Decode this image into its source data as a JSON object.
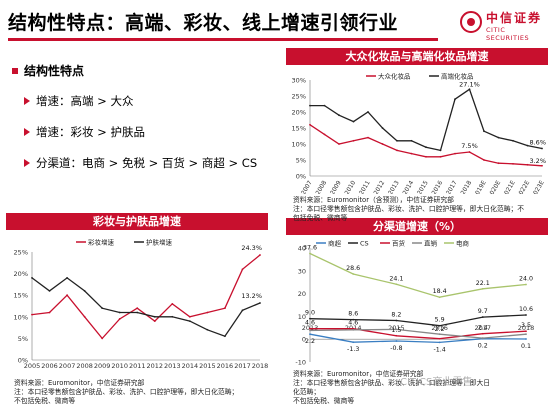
{
  "header": {
    "title": "结构性特点：高端、彩妆、线上增速引领行业",
    "logo_cn": "中信证券",
    "logo_en": "CITIC SECURITIES",
    "accent": "#c8102e"
  },
  "bullets": {
    "heading": "结构性特点",
    "items": [
      "增速：高端 > 大众",
      "增速：彩妆 > 护肤品",
      "分渠道：电商 > 免税 > 百货 > 商超 > CS"
    ]
  },
  "watermark": "CITICS商业零售",
  "panels": {
    "top_right": {
      "title": "大众化妆品与高端化妆品增速",
      "source": [
        "资料来源：Euromonitor（含预测），中信证券研究部",
        "注：本口径零售额包含护肤品、彩妆、洗护、口腔护理等，即大日化范畴；不",
        "包括免税、微商等"
      ]
    },
    "bottom_left": {
      "title": "彩妆与护肤品增速",
      "source": [
        "资料来源：Euromonitor，中信证券研究部",
        "注：本口径零售额包含护肤品、彩妆、洗护、口腔护理等，即大日化范畴；",
        "不包括免税、微商等"
      ]
    },
    "bottom_right": {
      "title": "分渠道增速（%）",
      "source": [
        "资料来源：Euromonitor，中信证券研究部",
        "注：本口径零售额包含护肤品、彩妆、洗护、口腔护理等，即大日化范畴；",
        "不包括免税、微商等"
      ]
    }
  },
  "chart_data": [
    {
      "type": "line",
      "x": [
        "2007",
        "2008",
        "2009",
        "2010",
        "2011",
        "2012",
        "2013",
        "2014",
        "2015",
        "2016",
        "2017",
        "2018",
        "2019E",
        "2020E",
        "2021E",
        "2022E",
        "2023E"
      ],
      "series": [
        {
          "name": "大众化妆品",
          "color": "#c8102e",
          "values": [
            16,
            13,
            10,
            11,
            12,
            10,
            8,
            7,
            6,
            6,
            7,
            7.5,
            5,
            4,
            3.8,
            3.5,
            3.2
          ]
        },
        {
          "name": "高端化妆品",
          "color": "#222222",
          "values": [
            22,
            22,
            19,
            17,
            20,
            15,
            11,
            11,
            9,
            8,
            24,
            27.1,
            14,
            12,
            11,
            9.5,
            8.6
          ]
        }
      ],
      "annotations": [
        "27.1%",
        "7.5%",
        "8.6%",
        "3.2%"
      ],
      "ylim": [
        0,
        30
      ],
      "yticks": [
        "0%",
        "5%",
        "10%",
        "15%",
        "20%",
        "25%",
        "30%"
      ],
      "legend": "top-center"
    },
    {
      "type": "line",
      "x": [
        "2005",
        "2006",
        "2007",
        "2008",
        "2009",
        "2010",
        "2011",
        "2012",
        "2013",
        "2014",
        "2015",
        "2016",
        "2017",
        "2018"
      ],
      "series": [
        {
          "name": "彩妆增速",
          "color": "#c8102e",
          "values": [
            10.5,
            11,
            15,
            10,
            5,
            9.5,
            12,
            9,
            13,
            10,
            11,
            12,
            21,
            24.3
          ]
        },
        {
          "name": "护肤增速",
          "color": "#222222",
          "values": [
            19,
            16,
            19,
            16,
            12,
            11,
            11,
            10,
            10,
            9,
            7,
            5.5,
            11.5,
            13.2
          ]
        }
      ],
      "annotations": [
        "24.3%",
        "13.2%"
      ],
      "ylim": [
        0,
        25
      ],
      "yticks": [
        "0%",
        "5%",
        "10%",
        "15%",
        "20%",
        "25%"
      ],
      "legend": "top-center"
    },
    {
      "type": "line",
      "x": [
        "2013",
        "2014",
        "2015",
        "2016",
        "2017",
        "2018"
      ],
      "series": [
        {
          "name": "商超",
          "color": "#3a7ec2",
          "values": [
            2.2,
            -1.3,
            -0.8,
            -1.4,
            0.2,
            0.1
          ]
        },
        {
          "name": "CS",
          "color": "#222222",
          "values": [
            9,
            8.6,
            8.2,
            5.9,
            9.7,
            10.6
          ]
        },
        {
          "name": "百货",
          "color": "#c8102e",
          "values": [
            4.6,
            4.6,
            1.5,
            0.2,
            2.4,
            3.5
          ]
        },
        {
          "name": "直销",
          "color": "#888888",
          "values": [
            3.8,
            4.1,
            4.3,
            2.2,
            0.5,
            2.2
          ]
        },
        {
          "name": "电商",
          "color": "#a9c46c",
          "values": [
            37.6,
            28.6,
            24.1,
            18.4,
            22.1,
            24
          ]
        }
      ],
      "labels": {
        "电商": [
          "37.6",
          "28.6",
          "24.1",
          "18.4",
          "22.1",
          "24.0"
        ],
        "CS": [
          "9.0",
          "8.6",
          "8.2",
          "5.9",
          "9.7",
          "10.6"
        ],
        "百货": [
          "4.6",
          "4.6",
          "1.5",
          "",
          "2.4",
          "3.5"
        ],
        "商超": [
          "2.2",
          "-1.3",
          "-0.8",
          "-1.4",
          "0.2",
          "0.1"
        ],
        "直销": [
          "",
          "",
          "",
          "2.2",
          "",
          ""
        ]
      },
      "ylim": [
        -10,
        40
      ],
      "yticks": [
        "-10",
        "0",
        "10",
        "20",
        "30",
        "40"
      ],
      "legend": "top"
    }
  ]
}
